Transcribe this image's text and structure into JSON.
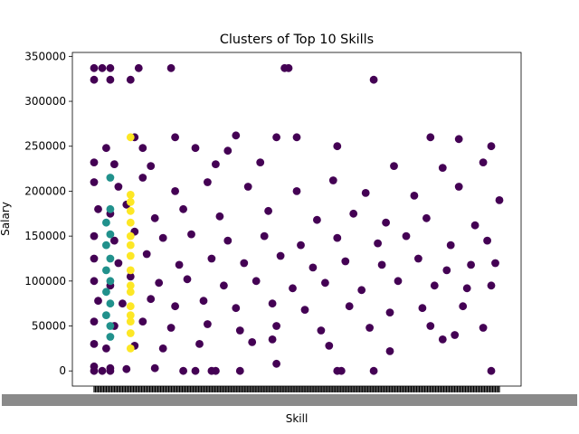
{
  "chart_data": {
    "type": "scatter",
    "title": "Clusters of Top 10 Skills",
    "xlabel": "Skill",
    "ylabel": "Salary",
    "ylim": [
      -16875,
      354375
    ],
    "yticks": [
      0,
      50000,
      100000,
      150000,
      200000,
      250000,
      300000,
      350000
    ],
    "grid": false,
    "legend": "none",
    "x_tick_labels_note": "hundreds of overlapping categorical skill labels, unreadable",
    "cluster_colors": [
      "#440154",
      "#21918c",
      "#fde725"
    ],
    "clusters": [
      {
        "cluster": 0,
        "color": "#440154",
        "points": [
          [
            0.0,
            0
          ],
          [
            0.02,
            0
          ],
          [
            0.04,
            0
          ],
          [
            0.3,
            0
          ],
          [
            0.6,
            0
          ],
          [
            0.25,
            0
          ],
          [
            0.22,
            0
          ],
          [
            0.29,
            0
          ],
          [
            0.61,
            0
          ],
          [
            0.98,
            0
          ],
          [
            0.0,
            337000
          ],
          [
            0.02,
            337000
          ],
          [
            0.04,
            337000
          ],
          [
            0.11,
            337000
          ],
          [
            0.19,
            337000
          ],
          [
            0.47,
            337000
          ],
          [
            0.48,
            337000
          ],
          [
            0.0,
            324000
          ],
          [
            0.04,
            324000
          ],
          [
            0.09,
            324000
          ],
          [
            0.69,
            324000
          ],
          [
            0.1,
            260000
          ],
          [
            0.2,
            260000
          ],
          [
            0.35,
            262000
          ],
          [
            0.45,
            260000
          ],
          [
            0.5,
            260000
          ],
          [
            0.83,
            260000
          ],
          [
            0.9,
            258000
          ],
          [
            0.6,
            250000
          ],
          [
            0.98,
            250000
          ],
          [
            0.03,
            248000
          ],
          [
            0.12,
            248000
          ],
          [
            0.25,
            248000
          ],
          [
            0.33,
            245000
          ],
          [
            0.0,
            232000
          ],
          [
            0.05,
            230000
          ],
          [
            0.14,
            228000
          ],
          [
            0.3,
            230000
          ],
          [
            0.41,
            232000
          ],
          [
            0.74,
            228000
          ],
          [
            0.86,
            226000
          ],
          [
            0.96,
            232000
          ],
          [
            0.0,
            210000
          ],
          [
            0.06,
            205000
          ],
          [
            0.12,
            215000
          ],
          [
            0.2,
            200000
          ],
          [
            0.28,
            210000
          ],
          [
            0.38,
            205000
          ],
          [
            0.5,
            200000
          ],
          [
            0.59,
            212000
          ],
          [
            0.67,
            198000
          ],
          [
            0.79,
            195000
          ],
          [
            0.9,
            205000
          ],
          [
            1.0,
            190000
          ],
          [
            0.01,
            180000
          ],
          [
            0.04,
            175000
          ],
          [
            0.08,
            185000
          ],
          [
            0.15,
            170000
          ],
          [
            0.22,
            180000
          ],
          [
            0.31,
            172000
          ],
          [
            0.43,
            178000
          ],
          [
            0.55,
            168000
          ],
          [
            0.64,
            175000
          ],
          [
            0.72,
            165000
          ],
          [
            0.82,
            170000
          ],
          [
            0.94,
            162000
          ],
          [
            0.0,
            150000
          ],
          [
            0.05,
            145000
          ],
          [
            0.1,
            155000
          ],
          [
            0.17,
            148000
          ],
          [
            0.24,
            152000
          ],
          [
            0.33,
            145000
          ],
          [
            0.42,
            150000
          ],
          [
            0.51,
            140000
          ],
          [
            0.6,
            148000
          ],
          [
            0.7,
            142000
          ],
          [
            0.77,
            150000
          ],
          [
            0.88,
            140000
          ],
          [
            0.97,
            145000
          ],
          [
            0.0,
            125000
          ],
          [
            0.06,
            120000
          ],
          [
            0.13,
            130000
          ],
          [
            0.21,
            118000
          ],
          [
            0.29,
            125000
          ],
          [
            0.37,
            120000
          ],
          [
            0.46,
            128000
          ],
          [
            0.54,
            115000
          ],
          [
            0.62,
            122000
          ],
          [
            0.71,
            118000
          ],
          [
            0.8,
            125000
          ],
          [
            0.87,
            112000
          ],
          [
            0.93,
            118000
          ],
          [
            0.99,
            120000
          ],
          [
            0.0,
            100000
          ],
          [
            0.04,
            95000
          ],
          [
            0.09,
            105000
          ],
          [
            0.16,
            98000
          ],
          [
            0.23,
            102000
          ],
          [
            0.32,
            95000
          ],
          [
            0.4,
            100000
          ],
          [
            0.49,
            92000
          ],
          [
            0.57,
            98000
          ],
          [
            0.66,
            90000
          ],
          [
            0.75,
            100000
          ],
          [
            0.84,
            95000
          ],
          [
            0.92,
            92000
          ],
          [
            0.98,
            95000
          ],
          [
            0.01,
            78000
          ],
          [
            0.07,
            75000
          ],
          [
            0.14,
            80000
          ],
          [
            0.2,
            72000
          ],
          [
            0.27,
            78000
          ],
          [
            0.35,
            70000
          ],
          [
            0.44,
            75000
          ],
          [
            0.52,
            68000
          ],
          [
            0.63,
            72000
          ],
          [
            0.73,
            65000
          ],
          [
            0.81,
            70000
          ],
          [
            0.91,
            72000
          ],
          [
            0.0,
            55000
          ],
          [
            0.05,
            50000
          ],
          [
            0.12,
            55000
          ],
          [
            0.19,
            48000
          ],
          [
            0.28,
            52000
          ],
          [
            0.36,
            45000
          ],
          [
            0.45,
            50000
          ],
          [
            0.56,
            45000
          ],
          [
            0.68,
            48000
          ],
          [
            0.83,
            50000
          ],
          [
            0.89,
            40000
          ],
          [
            0.96,
            48000
          ],
          [
            0.0,
            30000
          ],
          [
            0.03,
            25000
          ],
          [
            0.1,
            28000
          ],
          [
            0.17,
            25000
          ],
          [
            0.26,
            30000
          ],
          [
            0.39,
            32000
          ],
          [
            0.44,
            35000
          ],
          [
            0.58,
            28000
          ],
          [
            0.73,
            22000
          ],
          [
            0.86,
            35000
          ],
          [
            0.0,
            5000
          ],
          [
            0.04,
            3000
          ],
          [
            0.08,
            2000
          ],
          [
            0.15,
            3000
          ],
          [
            0.45,
            8000
          ],
          [
            0.36,
            0
          ],
          [
            0.69,
            0
          ]
        ]
      },
      {
        "cluster": 1,
        "color": "#21918c",
        "points": [
          [
            0.04,
            215000
          ],
          [
            0.04,
            180000
          ],
          [
            0.03,
            165000
          ],
          [
            0.04,
            152000
          ],
          [
            0.03,
            140000
          ],
          [
            0.04,
            125000
          ],
          [
            0.03,
            112000
          ],
          [
            0.04,
            100000
          ],
          [
            0.03,
            88000
          ],
          [
            0.04,
            75000
          ],
          [
            0.03,
            62000
          ],
          [
            0.04,
            50000
          ],
          [
            0.04,
            38000
          ]
        ]
      },
      {
        "cluster": 2,
        "color": "#fde725",
        "points": [
          [
            0.09,
            260000
          ],
          [
            0.09,
            196000
          ],
          [
            0.09,
            188000
          ],
          [
            0.09,
            178000
          ],
          [
            0.09,
            165000
          ],
          [
            0.09,
            150000
          ],
          [
            0.09,
            140000
          ],
          [
            0.09,
            128000
          ],
          [
            0.09,
            112000
          ],
          [
            0.09,
            95000
          ],
          [
            0.09,
            88000
          ],
          [
            0.09,
            72000
          ],
          [
            0.09,
            62000
          ],
          [
            0.09,
            55000
          ],
          [
            0.09,
            42000
          ],
          [
            0.09,
            25000
          ]
        ]
      }
    ]
  }
}
